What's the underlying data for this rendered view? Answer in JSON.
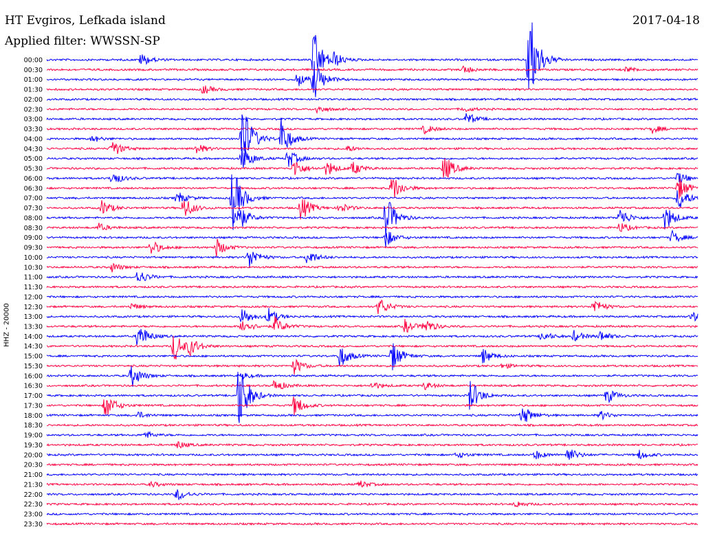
{
  "header": {
    "station": "HT Evgiros, Lefkada island",
    "date": "2017-04-18",
    "filter": "Applied filter: WWSSN-SP"
  },
  "chart_data": {
    "type": "line",
    "title": "HT Evgiros, Lefkada island",
    "ylabel": "HHZ - 20000",
    "colors": [
      "#0000ff",
      "#ff0040"
    ],
    "time_labels": [
      "00:00",
      "00:30",
      "01:00",
      "01:30",
      "02:00",
      "02:30",
      "03:00",
      "03:30",
      "04:00",
      "04:30",
      "05:00",
      "05:30",
      "06:00",
      "06:30",
      "07:00",
      "07:30",
      "08:00",
      "08:30",
      "09:00",
      "09:30",
      "10:00",
      "10:30",
      "11:00",
      "11:30",
      "12:00",
      "12:30",
      "13:00",
      "13:30",
      "14:00",
      "14:30",
      "15:00",
      "15:30",
      "16:00",
      "16:30",
      "17:00",
      "17:30",
      "18:00",
      "18:30",
      "19:00",
      "19:30",
      "20:00",
      "20:30",
      "21:00",
      "21:30",
      "22:00",
      "22:30",
      "23:00",
      "23:30"
    ],
    "x_range_minutes": [
      0,
      30
    ],
    "events": [
      {
        "trace": 0,
        "t": 0.145,
        "amp": 10
      },
      {
        "trace": 0,
        "t": 0.41,
        "amp": 44
      },
      {
        "trace": 0,
        "t": 0.44,
        "amp": 10
      },
      {
        "trace": 0,
        "t": 0.74,
        "amp": 88
      },
      {
        "trace": 1,
        "t": 0.64,
        "amp": 6
      },
      {
        "trace": 1,
        "t": 0.89,
        "amp": 4
      },
      {
        "trace": 2,
        "t": 0.385,
        "amp": 12
      },
      {
        "trace": 2,
        "t": 0.41,
        "amp": 30
      },
      {
        "trace": 3,
        "t": 0.24,
        "amp": 7
      },
      {
        "trace": 5,
        "t": 0.415,
        "amp": 6
      },
      {
        "trace": 5,
        "t": 0.64,
        "amp": 4
      },
      {
        "trace": 6,
        "t": 0.645,
        "amp": 10
      },
      {
        "trace": 7,
        "t": 0.58,
        "amp": 7
      },
      {
        "trace": 7,
        "t": 0.93,
        "amp": 6
      },
      {
        "trace": 8,
        "t": 0.3,
        "amp": 60
      },
      {
        "trace": 8,
        "t": 0.36,
        "amp": 30
      },
      {
        "trace": 8,
        "t": 0.07,
        "amp": 5
      },
      {
        "trace": 9,
        "t": 0.1,
        "amp": 14
      },
      {
        "trace": 9,
        "t": 0.23,
        "amp": 8
      },
      {
        "trace": 9,
        "t": 0.46,
        "amp": 5
      },
      {
        "trace": 10,
        "t": 0.3,
        "amp": 20
      },
      {
        "trace": 10,
        "t": 0.37,
        "amp": 15
      },
      {
        "trace": 11,
        "t": 0.38,
        "amp": 15
      },
      {
        "trace": 11,
        "t": 0.43,
        "amp": 12
      },
      {
        "trace": 11,
        "t": 0.47,
        "amp": 10
      },
      {
        "trace": 11,
        "t": 0.61,
        "amp": 22
      },
      {
        "trace": 12,
        "t": 0.1,
        "amp": 11
      },
      {
        "trace": 12,
        "t": 0.97,
        "amp": 10
      },
      {
        "trace": 13,
        "t": 0.53,
        "amp": 22
      },
      {
        "trace": 13,
        "t": 0.97,
        "amp": 18
      },
      {
        "trace": 14,
        "t": 0.285,
        "amp": 50
      },
      {
        "trace": 14,
        "t": 0.2,
        "amp": 10
      },
      {
        "trace": 14,
        "t": 0.97,
        "amp": 20
      },
      {
        "trace": 15,
        "t": 0.21,
        "amp": 18
      },
      {
        "trace": 15,
        "t": 0.085,
        "amp": 12
      },
      {
        "trace": 15,
        "t": 0.39,
        "amp": 20
      },
      {
        "trace": 15,
        "t": 0.45,
        "amp": 8
      },
      {
        "trace": 16,
        "t": 0.52,
        "amp": 38
      },
      {
        "trace": 16,
        "t": 0.29,
        "amp": 30
      },
      {
        "trace": 16,
        "t": 0.88,
        "amp": 15
      },
      {
        "trace": 16,
        "t": 0.95,
        "amp": 20
      },
      {
        "trace": 17,
        "t": 0.08,
        "amp": 6
      },
      {
        "trace": 17,
        "t": 0.88,
        "amp": 8
      },
      {
        "trace": 18,
        "t": 0.52,
        "amp": 14
      },
      {
        "trace": 18,
        "t": 0.96,
        "amp": 10
      },
      {
        "trace": 19,
        "t": 0.16,
        "amp": 12
      },
      {
        "trace": 19,
        "t": 0.26,
        "amp": 14
      },
      {
        "trace": 20,
        "t": 0.31,
        "amp": 18
      },
      {
        "trace": 20,
        "t": 0.4,
        "amp": 12
      },
      {
        "trace": 21,
        "t": 0.1,
        "amp": 7
      },
      {
        "trace": 22,
        "t": 0.14,
        "amp": 12
      },
      {
        "trace": 25,
        "t": 0.51,
        "amp": 14
      },
      {
        "trace": 25,
        "t": 0.84,
        "amp": 12
      },
      {
        "trace": 25,
        "t": 0.13,
        "amp": 5
      },
      {
        "trace": 26,
        "t": 0.3,
        "amp": 14
      },
      {
        "trace": 26,
        "t": 0.34,
        "amp": 12
      },
      {
        "trace": 26,
        "t": 0.99,
        "amp": 8
      },
      {
        "trace": 27,
        "t": 0.3,
        "amp": 12
      },
      {
        "trace": 27,
        "t": 0.35,
        "amp": 14
      },
      {
        "trace": 27,
        "t": 0.55,
        "amp": 10
      },
      {
        "trace": 27,
        "t": 0.58,
        "amp": 12
      },
      {
        "trace": 28,
        "t": 0.14,
        "amp": 22
      },
      {
        "trace": 28,
        "t": 0.76,
        "amp": 8
      },
      {
        "trace": 28,
        "t": 0.81,
        "amp": 8
      },
      {
        "trace": 28,
        "t": 0.85,
        "amp": 8
      },
      {
        "trace": 29,
        "t": 0.195,
        "amp": 24
      },
      {
        "trace": 29,
        "t": 0.22,
        "amp": 12
      },
      {
        "trace": 30,
        "t": 0.45,
        "amp": 18
      },
      {
        "trace": 30,
        "t": 0.53,
        "amp": 24
      },
      {
        "trace": 30,
        "t": 0.67,
        "amp": 12
      },
      {
        "trace": 31,
        "t": 0.38,
        "amp": 12
      },
      {
        "trace": 31,
        "t": 0.7,
        "amp": 4
      },
      {
        "trace": 32,
        "t": 0.13,
        "amp": 18
      },
      {
        "trace": 32,
        "t": 0.3,
        "amp": 5
      },
      {
        "trace": 33,
        "t": 0.35,
        "amp": 10
      },
      {
        "trace": 33,
        "t": 0.5,
        "amp": 6
      },
      {
        "trace": 33,
        "t": 0.58,
        "amp": 6
      },
      {
        "trace": 34,
        "t": 0.295,
        "amp": 56
      },
      {
        "trace": 34,
        "t": 0.65,
        "amp": 26
      },
      {
        "trace": 34,
        "t": 0.86,
        "amp": 12
      },
      {
        "trace": 35,
        "t": 0.09,
        "amp": 20
      },
      {
        "trace": 35,
        "t": 0.38,
        "amp": 16
      },
      {
        "trace": 36,
        "t": 0.73,
        "amp": 16
      },
      {
        "trace": 36,
        "t": 0.85,
        "amp": 7
      },
      {
        "trace": 36,
        "t": 0.14,
        "amp": 5
      },
      {
        "trace": 38,
        "t": 0.15,
        "amp": 6
      },
      {
        "trace": 39,
        "t": 0.2,
        "amp": 6
      },
      {
        "trace": 40,
        "t": 0.8,
        "amp": 12
      },
      {
        "trace": 40,
        "t": 0.75,
        "amp": 7
      },
      {
        "trace": 40,
        "t": 0.91,
        "amp": 7
      },
      {
        "trace": 40,
        "t": 0.63,
        "amp": 5
      },
      {
        "trace": 43,
        "t": 0.48,
        "amp": 6
      },
      {
        "trace": 43,
        "t": 0.16,
        "amp": 4
      },
      {
        "trace": 44,
        "t": 0.2,
        "amp": 10
      },
      {
        "trace": 45,
        "t": 0.72,
        "amp": 5
      }
    ]
  }
}
